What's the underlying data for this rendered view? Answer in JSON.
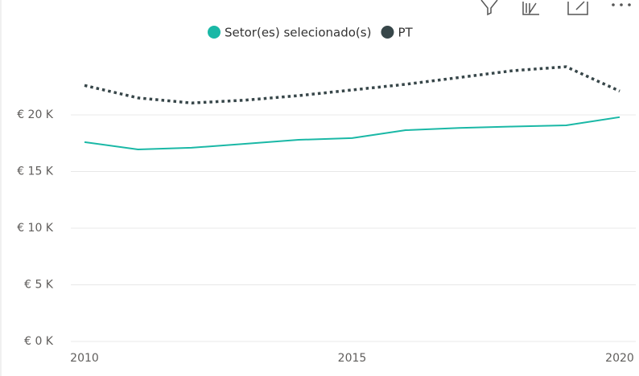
{
  "chart_data": {
    "type": "line",
    "x": [
      2010,
      2011,
      2012,
      2013,
      2014,
      2015,
      2016,
      2017,
      2018,
      2019,
      2020
    ],
    "series": [
      {
        "name": "Setor(es) selecionado(s)",
        "color": "#1ab8a6",
        "dash": false,
        "values": [
          17600,
          16950,
          17100,
          17450,
          17800,
          17950,
          18650,
          18850,
          18970,
          19080,
          19800
        ]
      },
      {
        "name": "PT",
        "color": "#374649",
        "dash": true,
        "values": [
          22600,
          21500,
          21050,
          21300,
          21700,
          22200,
          22700,
          23300,
          23900,
          24250,
          22100
        ]
      }
    ],
    "xlim": [
      2010,
      2020
    ],
    "xticks": [
      2010,
      2015,
      2020
    ],
    "ylim": [
      0,
      25000
    ],
    "yticks": [
      {
        "value": 0,
        "label": "€ 0 K"
      },
      {
        "value": 5000,
        "label": "€ 5 K"
      },
      {
        "value": 10000,
        "label": "€ 10 K"
      },
      {
        "value": 15000,
        "label": "€ 15 K"
      },
      {
        "value": 20000,
        "label": "€ 20 K"
      }
    ],
    "grid": true
  }
}
